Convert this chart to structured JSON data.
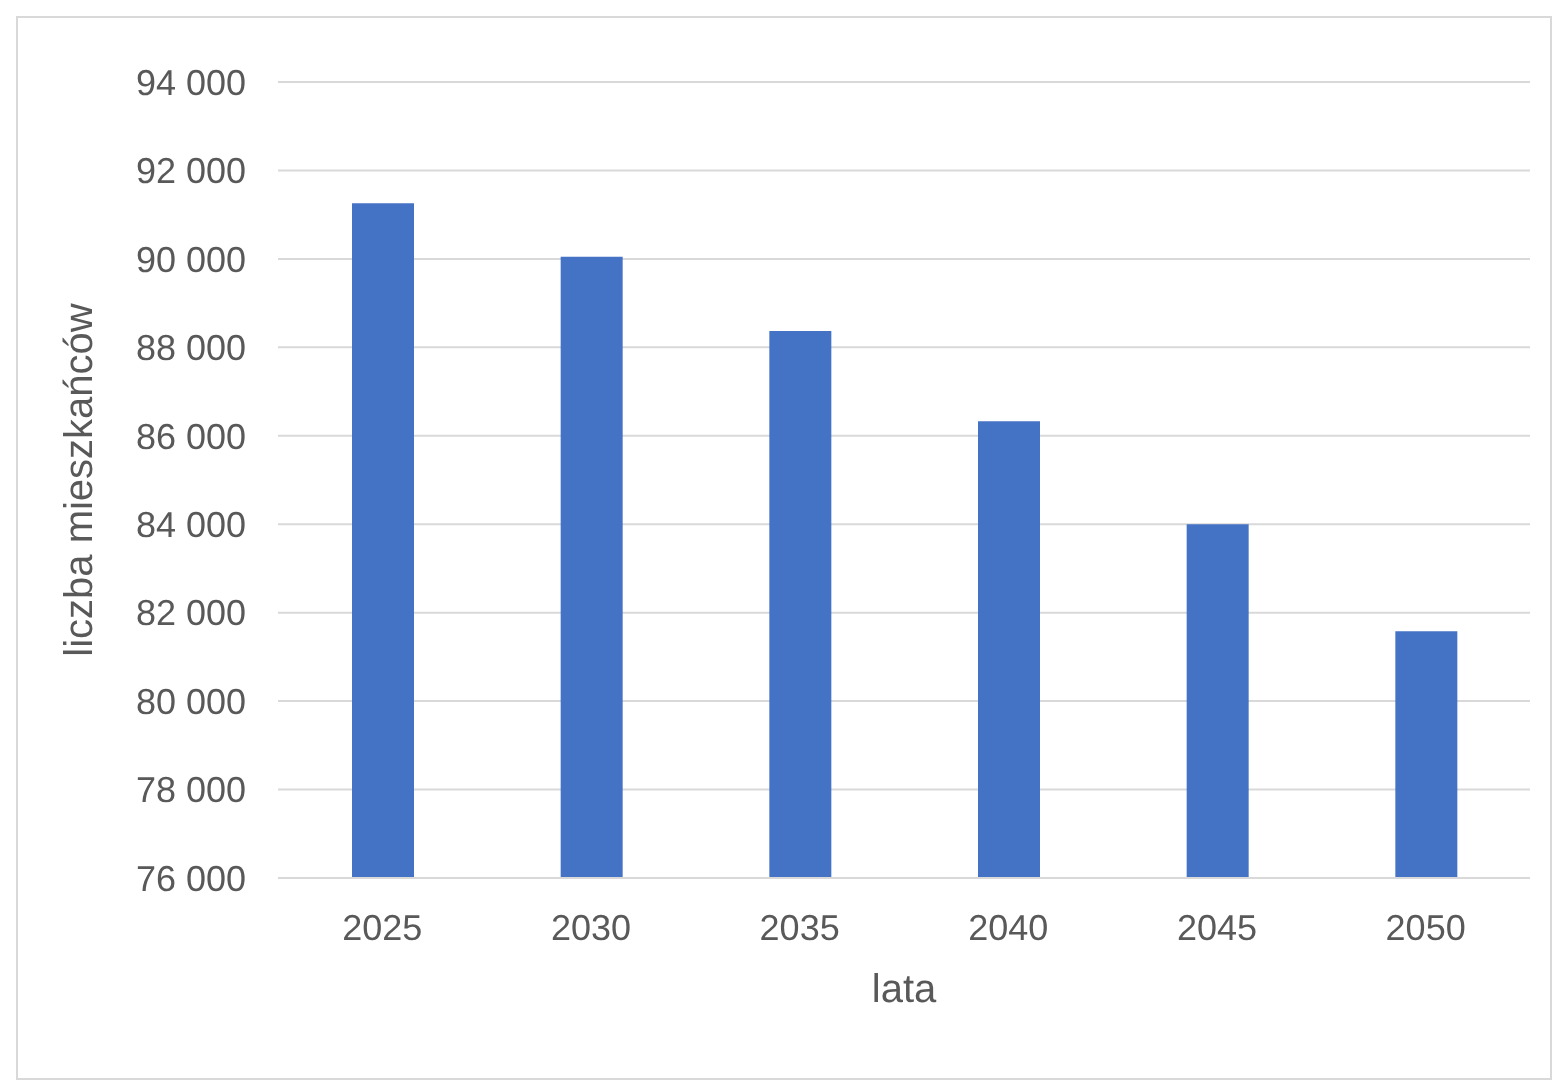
{
  "chart_data": {
    "type": "bar",
    "xlabel": "lata",
    "ylabel": "liczba mieszkańców",
    "categories": [
      "2025",
      "2030",
      "2035",
      "2040",
      "2045",
      "2050"
    ],
    "values": [
      91260,
      90050,
      88370,
      86330,
      84000,
      81580
    ],
    "color": "#4472c4",
    "ylim": [
      76000,
      94000
    ],
    "yticks": [
      {
        "value": 76000,
        "label": "76 000"
      },
      {
        "value": 78000,
        "label": "78 000"
      },
      {
        "value": 80000,
        "label": "80 000"
      },
      {
        "value": 82000,
        "label": "82 000"
      },
      {
        "value": 84000,
        "label": "84 000"
      },
      {
        "value": 86000,
        "label": "86 000"
      },
      {
        "value": 88000,
        "label": "88 000"
      },
      {
        "value": 90000,
        "label": "90 000"
      },
      {
        "value": 92000,
        "label": "92 000"
      },
      {
        "value": 94000,
        "label": "94 000"
      }
    ],
    "grid": "y",
    "legend": false
  }
}
